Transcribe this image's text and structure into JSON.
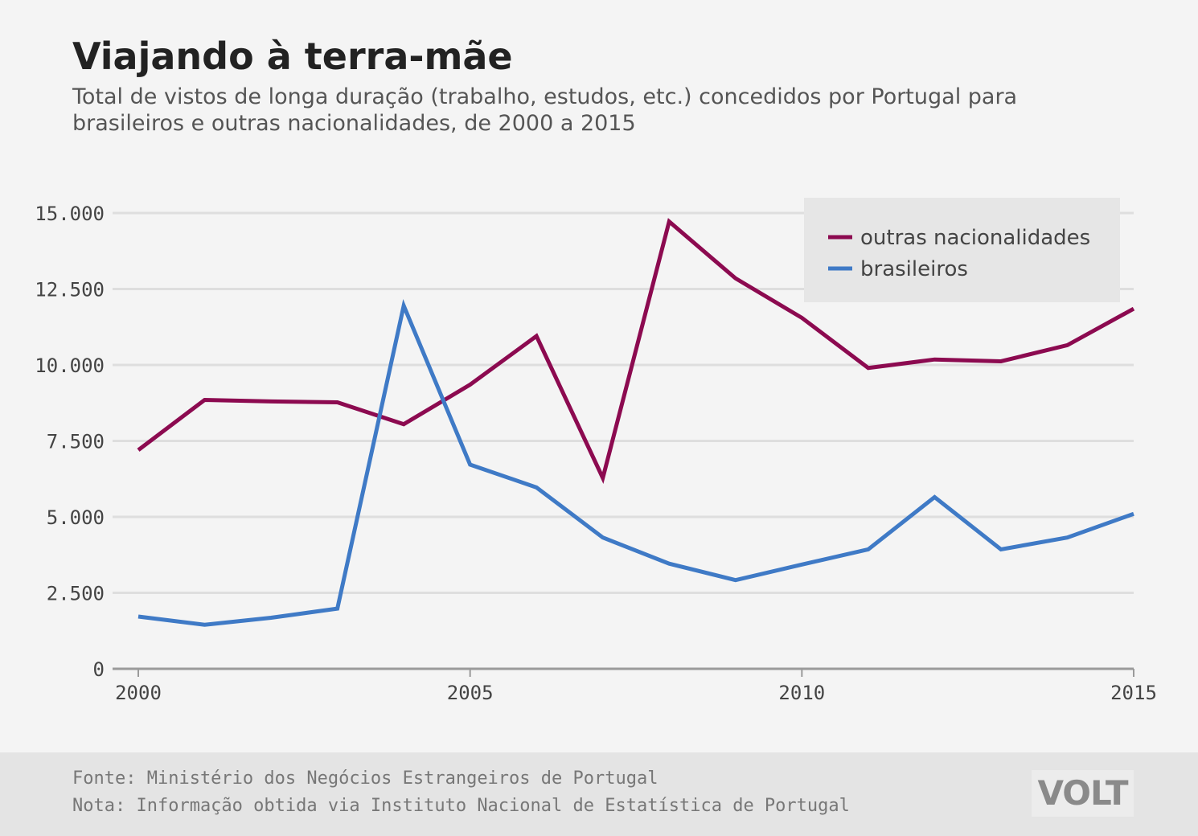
{
  "header": {
    "title": "Viajando à terra-mãe",
    "subtitle": "Total de vistos de longa duração (trabalho, estudos, etc.) concedidos por Portugal para brasileiros e outras nacionalidades, de 2000 a 2015"
  },
  "footer": {
    "source": "Fonte: Ministério dos Negócios Estrangeiros de Portugal",
    "note": "Nota: Informação obtida via Instituto Nacional de Estatística de Portugal",
    "logo": "VOLT"
  },
  "colors": {
    "outras": "#8c0a50",
    "brasileiros": "#3f7ac6",
    "grid": "#dedede",
    "axis": "#9a9a9a",
    "legend_bg": "#e6e6e6"
  },
  "chart_data": {
    "type": "line",
    "title": "Viajando à terra-mãe",
    "x": [
      2000,
      2001,
      2002,
      2003,
      2004,
      2005,
      2006,
      2007,
      2008,
      2009,
      2010,
      2011,
      2012,
      2013,
      2014,
      2015
    ],
    "xlim": [
      2000,
      2015
    ],
    "ylim": [
      0,
      15000
    ],
    "x_ticks": [
      2000,
      2005,
      2010,
      2015
    ],
    "y_ticks": [
      0,
      2500,
      5000,
      7500,
      10000,
      12500,
      15000
    ],
    "y_tick_labels": [
      "0",
      "2.500",
      "5.000",
      "7.500",
      "10.000",
      "12.500",
      "15.000"
    ],
    "grid": true,
    "legend_position": "top-right",
    "series": [
      {
        "name": "outras nacionalidades",
        "color": "#8c0a50",
        "values": [
          7200,
          8850,
          8800,
          8770,
          8050,
          9350,
          10950,
          6280,
          14720,
          12850,
          11550,
          9900,
          10180,
          10120,
          10650,
          11850
        ]
      },
      {
        "name": "brasileiros",
        "color": "#3f7ac6",
        "values": [
          1720,
          1450,
          1680,
          1980,
          11950,
          6720,
          5970,
          4320,
          3460,
          2920,
          3430,
          3930,
          5650,
          3930,
          4320,
          5100
        ]
      }
    ]
  }
}
